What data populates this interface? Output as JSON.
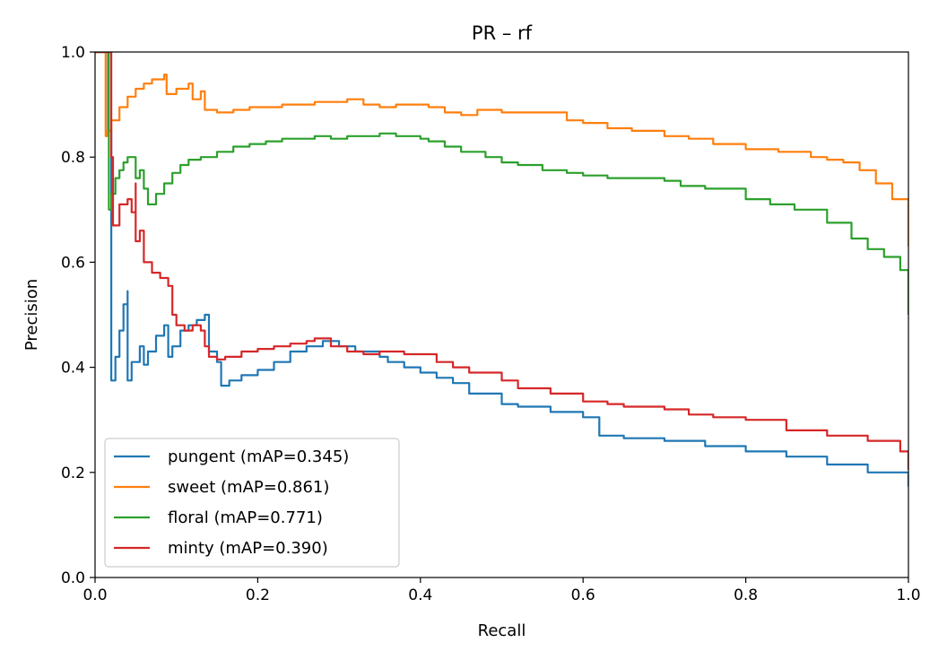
{
  "chart_data": {
    "type": "line",
    "title": "PR – rf",
    "xlabel": "Recall",
    "ylabel": "Precision",
    "xlim": [
      0.0,
      1.0
    ],
    "ylim": [
      0.0,
      1.0
    ],
    "xticks": [
      "0.0",
      "0.2",
      "0.4",
      "0.6",
      "0.8",
      "1.0"
    ],
    "yticks": [
      "0.0",
      "0.2",
      "0.4",
      "0.6",
      "0.8",
      "1.0"
    ],
    "grid": false,
    "legend_position": "lower-left",
    "series": [
      {
        "name": "pungent (mAP=0.345)",
        "color": "#1f77b4",
        "x": [
          0.0,
          0.013,
          0.016,
          0.02,
          0.02,
          0.025,
          0.03,
          0.035,
          0.04,
          0.04,
          0.045,
          0.055,
          0.06,
          0.065,
          0.075,
          0.085,
          0.09,
          0.095,
          0.105,
          0.115,
          0.125,
          0.135,
          0.14,
          0.15,
          0.155,
          0.165,
          0.18,
          0.2,
          0.22,
          0.24,
          0.26,
          0.28,
          0.3,
          0.32,
          0.35,
          0.36,
          0.38,
          0.4,
          0.42,
          0.44,
          0.46,
          0.5,
          0.52,
          0.56,
          0.6,
          0.62,
          0.65,
          0.7,
          0.75,
          0.8,
          0.85,
          0.9,
          0.95,
          1.0
        ],
        "y": [
          1.0,
          1.0,
          0.85,
          0.8,
          0.375,
          0.42,
          0.47,
          0.52,
          0.545,
          0.375,
          0.41,
          0.44,
          0.405,
          0.43,
          0.46,
          0.48,
          0.42,
          0.44,
          0.47,
          0.48,
          0.49,
          0.5,
          0.43,
          0.41,
          0.365,
          0.375,
          0.385,
          0.395,
          0.41,
          0.43,
          0.44,
          0.45,
          0.44,
          0.43,
          0.42,
          0.41,
          0.4,
          0.39,
          0.38,
          0.37,
          0.35,
          0.33,
          0.325,
          0.315,
          0.305,
          0.27,
          0.265,
          0.26,
          0.25,
          0.24,
          0.23,
          0.215,
          0.2,
          0.173
        ]
      },
      {
        "name": "sweet (mAP=0.861)",
        "color": "#ff7f0e",
        "x": [
          0.0,
          0.012,
          0.013,
          0.015,
          0.02,
          0.03,
          0.04,
          0.05,
          0.06,
          0.07,
          0.085,
          0.088,
          0.1,
          0.115,
          0.12,
          0.13,
          0.135,
          0.15,
          0.17,
          0.19,
          0.21,
          0.23,
          0.25,
          0.27,
          0.29,
          0.31,
          0.33,
          0.35,
          0.37,
          0.39,
          0.41,
          0.43,
          0.45,
          0.47,
          0.5,
          0.53,
          0.56,
          0.58,
          0.6,
          0.63,
          0.66,
          0.7,
          0.73,
          0.76,
          0.8,
          0.84,
          0.88,
          0.9,
          0.92,
          0.94,
          0.96,
          0.98,
          1.0
        ],
        "y": [
          1.0,
          1.0,
          0.84,
          0.85,
          0.87,
          0.895,
          0.915,
          0.93,
          0.94,
          0.948,
          0.957,
          0.92,
          0.93,
          0.94,
          0.91,
          0.925,
          0.89,
          0.885,
          0.89,
          0.895,
          0.895,
          0.9,
          0.9,
          0.905,
          0.905,
          0.91,
          0.9,
          0.895,
          0.9,
          0.9,
          0.895,
          0.885,
          0.88,
          0.89,
          0.885,
          0.885,
          0.885,
          0.87,
          0.865,
          0.855,
          0.85,
          0.84,
          0.835,
          0.825,
          0.815,
          0.81,
          0.8,
          0.795,
          0.79,
          0.775,
          0.75,
          0.72,
          0.63
        ]
      },
      {
        "name": "floral (mAP=0.771)",
        "color": "#2ca02c",
        "x": [
          0.0,
          0.015,
          0.017,
          0.02,
          0.025,
          0.03,
          0.035,
          0.04,
          0.05,
          0.055,
          0.06,
          0.065,
          0.075,
          0.085,
          0.095,
          0.105,
          0.115,
          0.13,
          0.15,
          0.17,
          0.19,
          0.21,
          0.23,
          0.25,
          0.27,
          0.29,
          0.31,
          0.33,
          0.35,
          0.37,
          0.4,
          0.41,
          0.43,
          0.45,
          0.48,
          0.5,
          0.52,
          0.55,
          0.58,
          0.6,
          0.63,
          0.66,
          0.7,
          0.72,
          0.75,
          0.8,
          0.83,
          0.86,
          0.9,
          0.93,
          0.95,
          0.97,
          0.99,
          1.0
        ],
        "y": [
          1.0,
          1.0,
          0.7,
          0.73,
          0.76,
          0.775,
          0.79,
          0.8,
          0.76,
          0.775,
          0.74,
          0.71,
          0.73,
          0.75,
          0.77,
          0.785,
          0.795,
          0.8,
          0.81,
          0.82,
          0.825,
          0.83,
          0.835,
          0.835,
          0.84,
          0.835,
          0.84,
          0.84,
          0.845,
          0.84,
          0.835,
          0.83,
          0.82,
          0.81,
          0.8,
          0.79,
          0.785,
          0.775,
          0.77,
          0.765,
          0.76,
          0.76,
          0.755,
          0.745,
          0.74,
          0.72,
          0.71,
          0.7,
          0.675,
          0.645,
          0.625,
          0.61,
          0.585,
          0.5
        ]
      },
      {
        "name": "minty (mAP=0.390)",
        "color": "#d62728",
        "x": [
          0.0,
          0.015,
          0.02,
          0.022,
          0.03,
          0.04,
          0.045,
          0.05,
          0.05,
          0.055,
          0.06,
          0.07,
          0.08,
          0.09,
          0.095,
          0.1,
          0.11,
          0.12,
          0.13,
          0.135,
          0.14,
          0.15,
          0.16,
          0.18,
          0.2,
          0.22,
          0.24,
          0.26,
          0.27,
          0.29,
          0.31,
          0.33,
          0.35,
          0.38,
          0.42,
          0.44,
          0.46,
          0.5,
          0.52,
          0.56,
          0.6,
          0.63,
          0.65,
          0.7,
          0.73,
          0.76,
          0.8,
          0.85,
          0.9,
          0.95,
          0.99,
          1.0
        ],
        "y": [
          1.0,
          1.0,
          0.8,
          0.67,
          0.71,
          0.72,
          0.695,
          0.75,
          0.64,
          0.66,
          0.6,
          0.58,
          0.57,
          0.555,
          0.5,
          0.48,
          0.47,
          0.48,
          0.47,
          0.44,
          0.42,
          0.415,
          0.42,
          0.43,
          0.435,
          0.44,
          0.445,
          0.45,
          0.455,
          0.44,
          0.43,
          0.425,
          0.43,
          0.425,
          0.41,
          0.4,
          0.39,
          0.375,
          0.36,
          0.35,
          0.335,
          0.33,
          0.325,
          0.32,
          0.31,
          0.305,
          0.3,
          0.28,
          0.27,
          0.26,
          0.24,
          0.205
        ]
      }
    ]
  }
}
